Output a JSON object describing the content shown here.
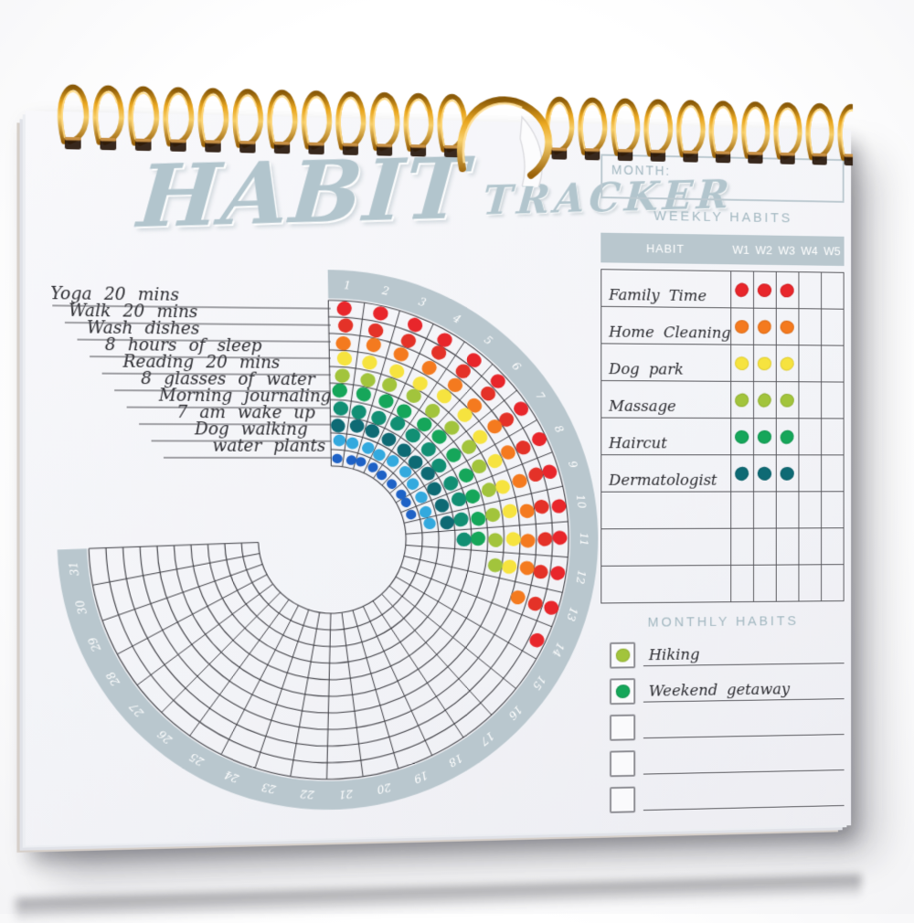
{
  "page": {
    "title_main": "HABIT",
    "title_sub": "TRACKER"
  },
  "chart_data": {
    "type": "radial-habit-grid",
    "days": 31,
    "day_labels": [
      "1",
      "2",
      "3",
      "4",
      "5",
      "6",
      "7",
      "8",
      "9",
      "10",
      "11",
      "12",
      "13",
      "14",
      "15",
      "16",
      "17",
      "18",
      "19",
      "20",
      "21",
      "22",
      "23",
      "24",
      "25",
      "26",
      "27",
      "28",
      "29",
      "30",
      "31"
    ],
    "start_angle_deg": -1,
    "segment_angle_deg": 8.684,
    "band_color": "#b9c7ce",
    "day_number_color": "#ffffff",
    "grid_color": "#3e3e44",
    "rings": [
      {
        "habit": "Yoga 20 mins",
        "color": "#e8262b",
        "filled_days": 14
      },
      {
        "habit": "Walk 20 mins",
        "color": "#e43228",
        "filled_days": 13
      },
      {
        "habit": "Wash dishes",
        "color": "#f47a1f",
        "filled_days": 13
      },
      {
        "habit": "8 hours of sleep",
        "color": "#f6e33f",
        "filled_days": 12
      },
      {
        "habit": "Reading 20 mins",
        "color": "#a2c43c",
        "filled_days": 12
      },
      {
        "habit": "8 glasses of water",
        "color": "#16a65a",
        "filled_days": 11
      },
      {
        "habit": "Morning journaling",
        "color": "#128f74",
        "filled_days": 11
      },
      {
        "habit": "7 am wake up",
        "color": "#0e6a74",
        "filled_days": 10
      },
      {
        "habit": "Dog walking",
        "color": "#33a9de",
        "filled_days": 10
      },
      {
        "habit": "water plants",
        "color": "#1e62c6",
        "filled_days": 9
      }
    ]
  },
  "right_panel": {
    "month_label": "MONTH:",
    "weekly": {
      "title": "WEEKLY HABITS",
      "habit_header": "HABIT",
      "week_headers": [
        "W1",
        "W2",
        "W3",
        "W4",
        "W5"
      ],
      "rows": [
        {
          "name": "Family Time",
          "color": "#e8262b",
          "weeks": [
            1,
            1,
            1,
            0,
            0
          ]
        },
        {
          "name": "Home Cleaning",
          "color": "#f47a1f",
          "weeks": [
            1,
            1,
            1,
            0,
            0
          ]
        },
        {
          "name": "Dog park",
          "color": "#f6e33f",
          "weeks": [
            1,
            1,
            1,
            0,
            0
          ]
        },
        {
          "name": "Massage",
          "color": "#a2c43c",
          "weeks": [
            1,
            1,
            1,
            0,
            0
          ]
        },
        {
          "name": "Haircut",
          "color": "#16a65a",
          "weeks": [
            1,
            1,
            1,
            0,
            0
          ]
        },
        {
          "name": "Dermatologist",
          "color": "#0e6a74",
          "weeks": [
            1,
            1,
            1,
            0,
            0
          ]
        }
      ],
      "empty_rows": 3
    },
    "monthly": {
      "title": "MONTHLY HABITS",
      "rows": [
        {
          "name": "Hiking",
          "color": "#a2c43c",
          "checked": true
        },
        {
          "name": "Weekend getaway",
          "color": "#16a65a",
          "checked": true
        },
        {
          "name": "",
          "color": "",
          "checked": false
        },
        {
          "name": "",
          "color": "",
          "checked": false
        },
        {
          "name": "",
          "color": "",
          "checked": false
        }
      ]
    }
  },
  "binding": {
    "style": "wire-o spiral",
    "coil_color_hint": "#d08a12",
    "left_coils": 12,
    "right_coils": 10,
    "center_hook": true
  }
}
